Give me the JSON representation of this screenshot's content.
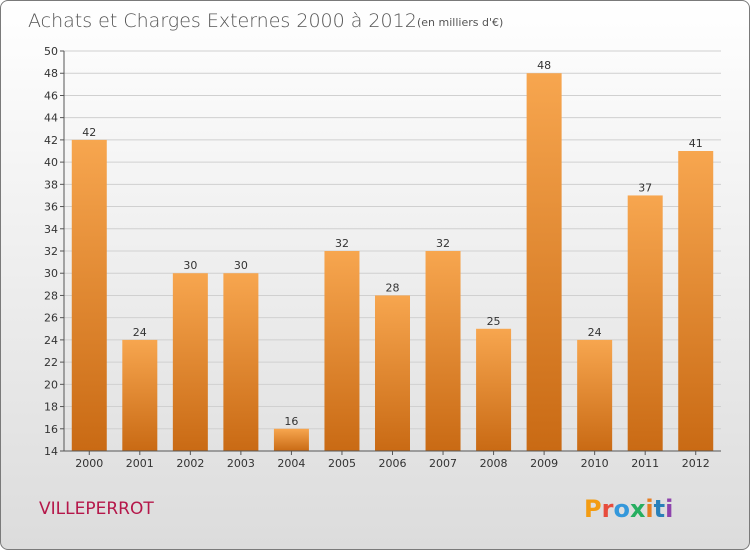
{
  "header": {
    "title": "Achats et Charges Externes 2000 à 2012",
    "unit": "(en milliers d'€)"
  },
  "footer": {
    "place": "VILLEPERROT",
    "logo": "Proxiti",
    "logo_colors": [
      "#f39c12",
      "#e74c3c",
      "#3498db",
      "#27ae60",
      "#e67e22",
      "#2980b9",
      "#8e44ad"
    ]
  },
  "colors": {
    "bar_top": "#f7a64f",
    "bar_bottom": "#c96a14",
    "grid": "#d0d0d0",
    "axis": "#555555"
  },
  "chart_data": {
    "type": "bar",
    "title": "Achats et Charges Externes 2000 à 2012",
    "subtitle": "(en milliers d'€)",
    "categories": [
      "2000",
      "2001",
      "2002",
      "2003",
      "2004",
      "2005",
      "2006",
      "2007",
      "2008",
      "2009",
      "2010",
      "2011",
      "2012"
    ],
    "values": [
      42,
      24,
      30,
      30,
      16,
      32,
      28,
      32,
      25,
      48,
      24,
      37,
      41
    ],
    "ylim": [
      14,
      50
    ],
    "yticks": [
      14,
      16,
      18,
      20,
      22,
      24,
      26,
      28,
      30,
      32,
      34,
      36,
      38,
      40,
      42,
      44,
      46,
      48,
      50
    ],
    "grid": true,
    "xlabel": "",
    "ylabel": ""
  }
}
